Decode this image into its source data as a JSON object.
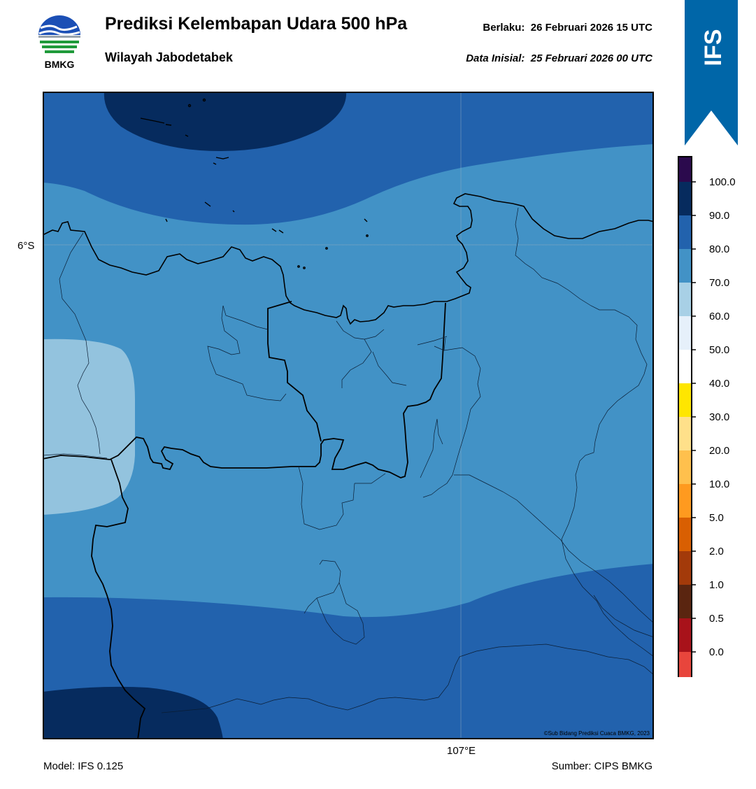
{
  "header": {
    "title": "Prediksi Kelembapan Udara 500 hPa",
    "subtitle": "Wilayah Jabodetabek",
    "valid_label": "Berlaku:",
    "valid_time": "26 Februari 2026 15 UTC",
    "init_label": "Data Inisial:",
    "init_time": "25 Februari 2026 00 UTC"
  },
  "logo": {
    "text": "BMKG",
    "icon": "bmkg-logo-icon"
  },
  "ribbon": {
    "text": "IFS",
    "color": "#0066a8"
  },
  "map": {
    "lat_label": "6°S",
    "lon_label": "107°E",
    "credit": "©Sub Bidang Prediksi Cuaca BMKG, 2023",
    "humidity_zones": [
      {
        "level": "90-100",
        "color": "#062b5e"
      },
      {
        "level": "80-90",
        "color": "#2262ad"
      },
      {
        "level": "70-80",
        "color": "#4292c6"
      },
      {
        "level": "60-70",
        "color": "#93c3de"
      }
    ]
  },
  "colorbar": {
    "labels": [
      "100.0",
      "90.0",
      "80.0",
      "70.0",
      "60.0",
      "50.0",
      "40.0",
      "30.0",
      "20.0",
      "10.0",
      "5.0",
      "2.0",
      "1.0",
      "0.5",
      "0.0"
    ],
    "colors": [
      "#2b0a4d",
      "#062b5e",
      "#2262ad",
      "#4292c6",
      "#a8d0e6",
      "#e6f0fa",
      "#ffffff",
      "#ffe600",
      "#ffe08a",
      "#ffc04d",
      "#ff9a1f",
      "#d95f02",
      "#a33a0a",
      "#5a2510",
      "#a8121a",
      "#e8453c"
    ]
  },
  "footer": {
    "model": "Model: IFS 0.125",
    "source": "Sumber: CIPS BMKG"
  }
}
